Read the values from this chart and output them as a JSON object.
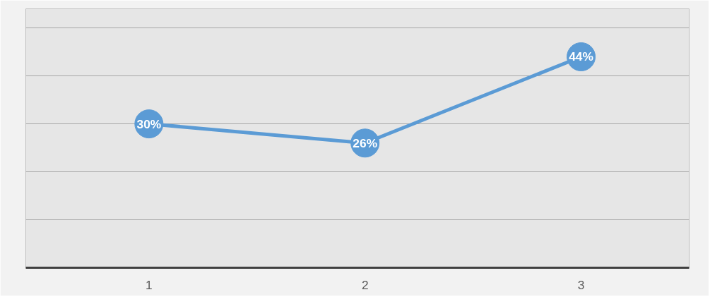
{
  "chart_data": {
    "type": "line",
    "categories": [
      "1",
      "2",
      "3"
    ],
    "series": [
      {
        "color": "#5b9bd5",
        "values": [
          30,
          26,
          44
        ],
        "value_labels": [
          "30%",
          "26%",
          "44%"
        ]
      }
    ],
    "ylim": [
      0,
      54
    ],
    "yticks": [
      {
        "value": 0,
        "label": null
      },
      {
        "value": 10,
        "label": null
      },
      {
        "value": 20,
        "label": null
      },
      {
        "value": 30,
        "label": null
      },
      {
        "value": 40,
        "label": null
      },
      {
        "value": 50,
        "label": null
      }
    ],
    "grid": "y",
    "tick_labels": "x",
    "marker": "circle",
    "line_style": "solid"
  }
}
